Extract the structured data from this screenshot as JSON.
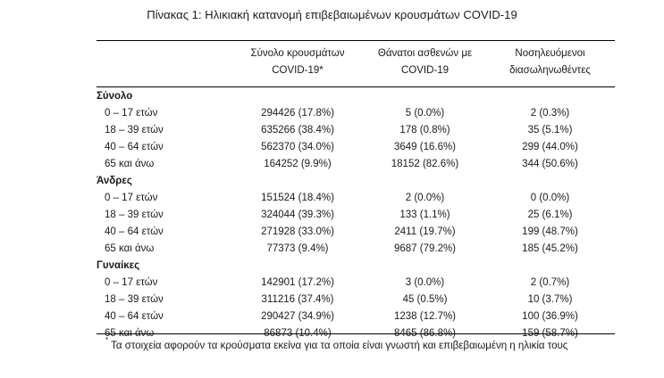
{
  "title": "Πίνακας 1: Ηλικιακή κατανομή επιβεβαιωμένων κρουσμάτων COVID-19",
  "headers": [
    {
      "line1": "Σύνολο κρουσμάτων",
      "line2": "COVID-19*"
    },
    {
      "line1": "Θάνατοι ασθενών με",
      "line2": "COVID-19"
    },
    {
      "line1": "Νοσηλευόμενοι",
      "line2": "διασωληνωθέντες"
    }
  ],
  "groups": [
    {
      "name": "Σύνολο",
      "rows": [
        {
          "label": "0 – 17 ετών",
          "cases": "294426 (17.8%)",
          "deaths": "5 (0.0%)",
          "intubated": "2 (0.3%)"
        },
        {
          "label": "18 – 39 ετών",
          "cases": "635266 (38.4%)",
          "deaths": "178 (0.8%)",
          "intubated": "35 (5.1%)"
        },
        {
          "label": "40 – 64 ετών",
          "cases": "562370 (34.0%)",
          "deaths": "3649 (16.6%)",
          "intubated": "299 (44.0%)"
        },
        {
          "label": "65 και άνω",
          "cases": "164252 (9.9%)",
          "deaths": "18152 (82.6%)",
          "intubated": "344 (50.6%)"
        }
      ]
    },
    {
      "name": "Άνδρες",
      "rows": [
        {
          "label": "0 – 17 ετών",
          "cases": "151524 (18.4%)",
          "deaths": "2 (0.0%)",
          "intubated": "0 (0.0%)"
        },
        {
          "label": "18 – 39 ετών",
          "cases": "324044 (39.3%)",
          "deaths": "133 (1.1%)",
          "intubated": "25 (6.1%)"
        },
        {
          "label": "40 – 64 ετών",
          "cases": "271928 (33.0%)",
          "deaths": "2411 (19.7%)",
          "intubated": "199 (48.7%)"
        },
        {
          "label": "65 και άνω",
          "cases": "77373 (9.4%)",
          "deaths": "9687 (79.2%)",
          "intubated": "185 (45.2%)"
        }
      ]
    },
    {
      "name": "Γυναίκες",
      "rows": [
        {
          "label": "0 – 17 ετών",
          "cases": "142901 (17.2%)",
          "deaths": "3 (0.0%)",
          "intubated": "2 (0.7%)"
        },
        {
          "label": "18 – 39 ετών",
          "cases": "311216 (37.4%)",
          "deaths": "45 (0.5%)",
          "intubated": "10 (3.7%)"
        },
        {
          "label": "40 – 64 ετών",
          "cases": "290427 (34.9%)",
          "deaths": "1238 (12.7%)",
          "intubated": "100 (36.9%)"
        },
        {
          "label": "65 και άνω",
          "cases": "86873 (10.4%)",
          "deaths": "8465 (86.8%)",
          "intubated": "159 (58.7%)"
        }
      ]
    }
  ],
  "footnote": {
    "marker": "*",
    "text": "Τα στοιχεία αφορούν τα κρούσματα εκείνα για τα οποία είναι γνωστή και επιβεβαιωμένη η ηλικία τους"
  }
}
